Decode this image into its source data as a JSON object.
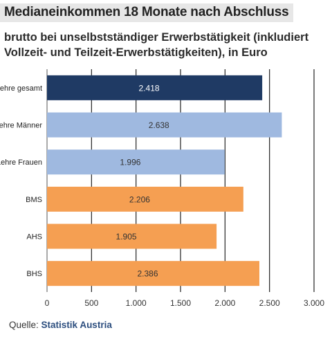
{
  "header": {
    "title": "Medianeinkommen 18 Monate nach Abschluss",
    "subtitle": "brutto bei unselbstständiger Erwerbstätigkeit (inkludiert Vollzeit- und Teilzeit-Erwerbstätigkeiten), in Euro"
  },
  "footer": {
    "source_label": "Quelle:",
    "source_name": "Statistik Austria"
  },
  "chart_data": {
    "type": "bar",
    "orientation": "horizontal",
    "categories": [
      "Lehre gesamt",
      "Lehre Männer",
      "Lehre Frauen",
      "BMS",
      "AHS",
      "BHS"
    ],
    "values": [
      2418,
      2638,
      1996,
      2206,
      1905,
      2386
    ],
    "value_labels": [
      "2.418",
      "2.638",
      "1.996",
      "2.206",
      "1.905",
      "2.386"
    ],
    "colors": [
      "#1f3a64",
      "#9fb9e0",
      "#9fb9e0",
      "#f59f52",
      "#f59f52",
      "#f59f52"
    ],
    "xlim": [
      0,
      3000
    ],
    "xticks": [
      0,
      500,
      1000,
      1500,
      2000,
      2500,
      3000
    ],
    "xtick_labels": [
      "0",
      "500",
      "1.000",
      "1.500",
      "2.000",
      "2.500",
      "3.000"
    ],
    "label_colors": {
      "dark": "#ffffff",
      "light": "#333333"
    },
    "grid": true
  }
}
